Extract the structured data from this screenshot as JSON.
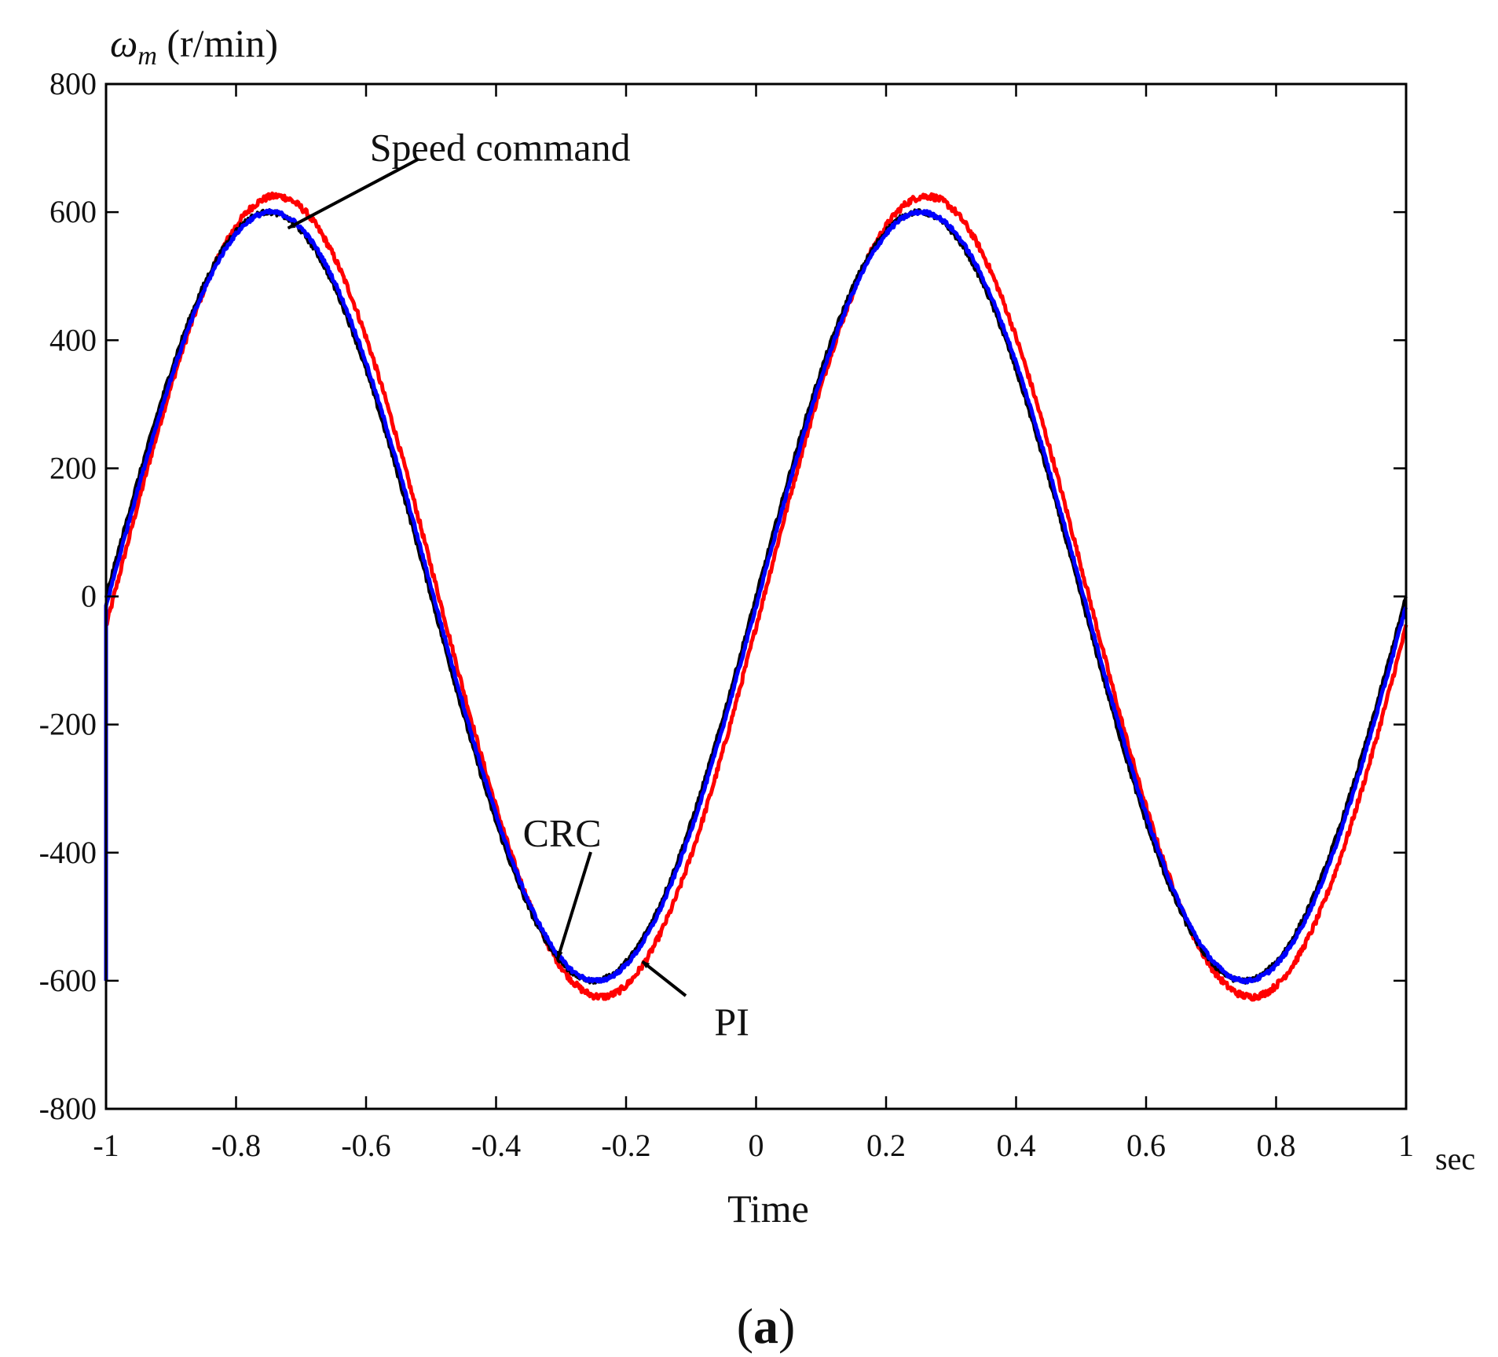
{
  "chart_data": {
    "type": "line",
    "ylabel_symbol": "ω",
    "ylabel_sub": "m",
    "ylabel_unit": " (r/min)",
    "xlabel": "Time",
    "xunit": "sec",
    "panel_label_open": "(",
    "panel_label_letter": "a",
    "panel_label_close": ")",
    "xlim": [
      -1,
      1
    ],
    "ylim": [
      -800,
      800
    ],
    "xticks": [
      -1,
      -0.8,
      -0.6,
      -0.4,
      -0.2,
      0,
      0.2,
      0.4,
      0.6,
      0.8,
      1
    ],
    "xtick_labels": [
      "-1",
      "-0.8",
      "-0.6",
      "-0.4",
      "-0.2",
      "0",
      "0.2",
      "0.4",
      "0.6",
      "0.8",
      "1"
    ],
    "yticks": [
      -800,
      -600,
      -400,
      -200,
      0,
      200,
      400,
      600,
      800
    ],
    "ytick_labels": [
      "-800",
      "-600",
      "-400",
      "-200",
      "0",
      "200",
      "400",
      "600",
      "800"
    ],
    "grid": false,
    "frequency_hz": 1,
    "series": [
      {
        "name": "Speed command",
        "color": "#000000",
        "amplitude": 600,
        "lag": 0,
        "noise": 4
      },
      {
        "name": "PI",
        "color": "#ff0000",
        "amplitude": 625,
        "lag": 0.012,
        "noise": 5
      },
      {
        "name": "CRC",
        "color": "#0000ff",
        "amplitude": 600,
        "lag": 0.004,
        "noise": 3,
        "initial_transient": -600
      }
    ],
    "annotations": [
      {
        "text": "Speed command",
        "text_x": -0.5,
        "text_y": 700,
        "arrow_to_x": -0.72,
        "arrow_to_y": 575
      },
      {
        "text": "CRC",
        "text_x": -0.25,
        "text_y": -370,
        "arrow_to_x": -0.305,
        "arrow_to_y": -565
      },
      {
        "text": "PI",
        "text_x": -0.04,
        "text_y": -665,
        "arrow_to_x": -0.175,
        "arrow_to_y": -570
      }
    ]
  }
}
